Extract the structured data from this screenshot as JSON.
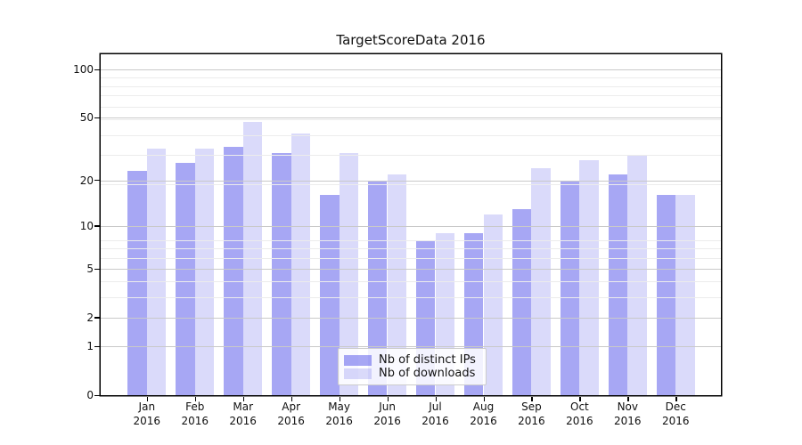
{
  "title": "TargetScoreData 2016",
  "chart_data": {
    "type": "bar",
    "title": "TargetScoreData 2016",
    "categories": [
      "Jan",
      "Feb",
      "Mar",
      "Apr",
      "May",
      "Jun",
      "Jul",
      "Aug",
      "Sep",
      "Oct",
      "Nov",
      "Dec"
    ],
    "year_label": "2016",
    "series": [
      {
        "name": "Nb of distinct IPs",
        "color": "rgba(60,60,230,0.45)",
        "color_hex": "#a7a7f3",
        "values": [
          23,
          26,
          33,
          30,
          16,
          20,
          8,
          9,
          13,
          20,
          22,
          16
        ]
      },
      {
        "name": "Nb of downloads",
        "color": "rgba(60,60,230,0.19)",
        "color_hex": "#dadaf9",
        "values": [
          32,
          32,
          47,
          40,
          30,
          22,
          9,
          12,
          24,
          27,
          29,
          16
        ]
      }
    ],
    "y_ticks": [
      0,
      1,
      2,
      5,
      10,
      20,
      50,
      100
    ],
    "y_minor_ticks": [
      1,
      2,
      3,
      4,
      5,
      6,
      7,
      8,
      19,
      29,
      39,
      49,
      59,
      69,
      79,
      89
    ],
    "y_scale": "log10(value+1)",
    "ylim": [
      0,
      125
    ],
    "grid": true,
    "legend_position": "lower center",
    "colors": {
      "bar_distinct_ips": "#a7a7f3",
      "bar_downloads": "#dadaf9",
      "grid_major": "#c9c9c9",
      "grid_minor": "#ececec",
      "axis": "#000000",
      "background": "#ffffff"
    }
  }
}
